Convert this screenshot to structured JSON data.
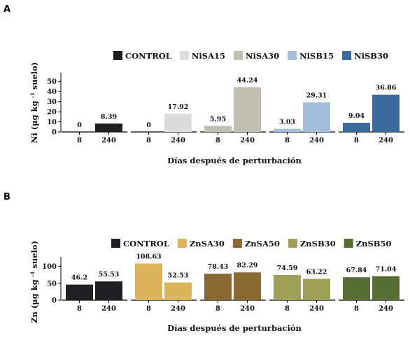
{
  "chart_data": [
    {
      "panel": "A",
      "type": "bar",
      "ylabel": "Ni (µg kg",
      "ylabel_sup": "-1",
      "ylabel_suffix": "suelo)",
      "xlabel": "Días después de perturbación",
      "ylim": [
        0,
        56
      ],
      "yticks": [
        0,
        10,
        20,
        30,
        40,
        50
      ],
      "categories": [
        "8",
        "240"
      ],
      "series": [
        {
          "name": "CONTROL",
          "color": "#1f2023",
          "values": [
            0,
            8.39
          ],
          "labels": [
            "0",
            "8.39"
          ]
        },
        {
          "name": "NiSA15",
          "color": "#dcdcdc",
          "values": [
            0,
            17.92
          ],
          "labels": [
            "0",
            "17.92"
          ]
        },
        {
          "name": "NiSA30",
          "color": "#c3beb4",
          "values": [
            5.95,
            44.24
          ],
          "labels": [
            "5.95",
            "44.24"
          ]
        },
        {
          "name": "NiSB15",
          "color": "#a3bfdc",
          "values": [
            3.03,
            29.31
          ],
          "labels": [
            "3.03",
            "29.31"
          ]
        },
        {
          "name": "NiSB30",
          "color": "#3a6a9e",
          "values": [
            9.04,
            36.86
          ],
          "labels": [
            "9.04",
            "36.86"
          ]
        }
      ]
    },
    {
      "panel": "B",
      "type": "bar",
      "ylabel": "Zn (µg kg",
      "ylabel_sup": "-1",
      "ylabel_suffix": "suelo)",
      "xlabel": "Días después de perturbación",
      "ylim": [
        0,
        120
      ],
      "yticks": [
        0,
        50,
        100
      ],
      "categories": [
        "8",
        "240"
      ],
      "series": [
        {
          "name": "CONTROL",
          "color": "#1f2023",
          "values": [
            46.2,
            55.53
          ],
          "labels": [
            "46.2",
            "55.53"
          ]
        },
        {
          "name": "ZnSA30",
          "color": "#dbb45c",
          "values": [
            108.63,
            52.53
          ],
          "labels": [
            "108.63",
            "52.53"
          ]
        },
        {
          "name": "ZnSA50",
          "color": "#8a6832",
          "values": [
            78.43,
            82.29
          ],
          "labels": [
            "78.43",
            "82.29"
          ]
        },
        {
          "name": "ZnSB30",
          "color": "#a1a058",
          "values": [
            74.59,
            63.22
          ],
          "labels": [
            "74.59",
            "63.22"
          ]
        },
        {
          "name": "ZnSB50",
          "color": "#586e34",
          "values": [
            67.84,
            71.04
          ],
          "labels": [
            "67.84",
            "71.04"
          ]
        }
      ]
    }
  ]
}
